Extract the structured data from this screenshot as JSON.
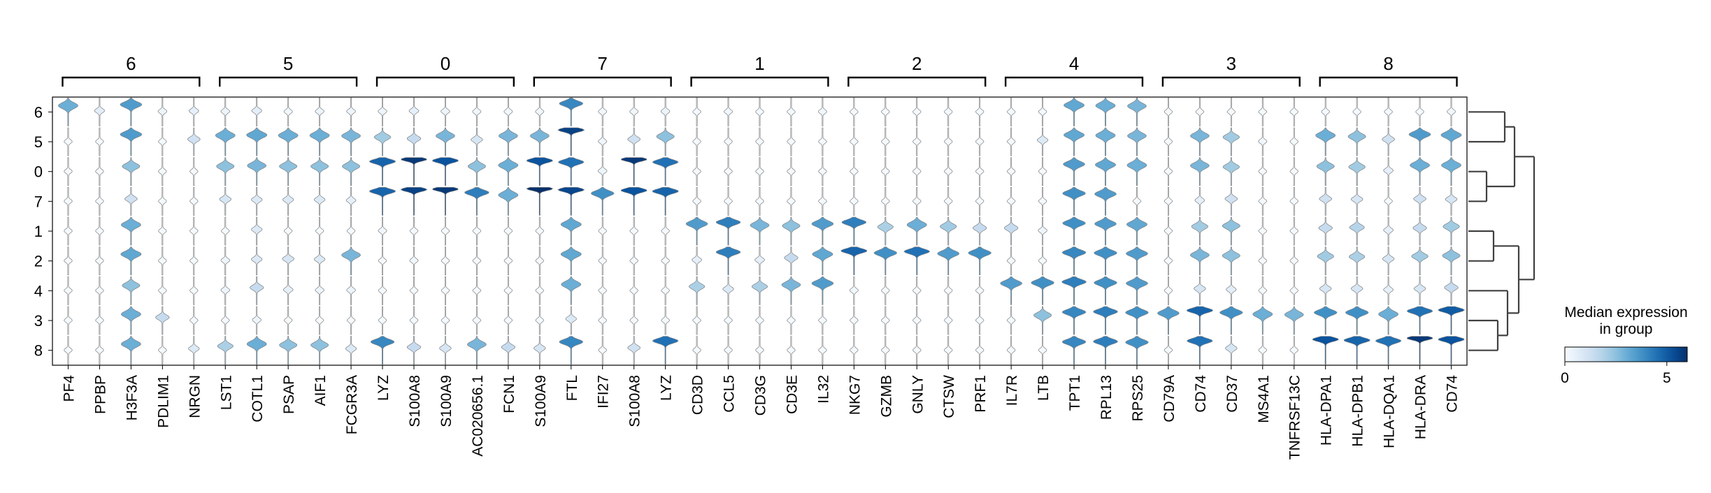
{
  "chart_data": {
    "type": "stacked-violin",
    "rows": [
      "6",
      "5",
      "0",
      "7",
      "1",
      "2",
      "4",
      "3",
      "8"
    ],
    "groups": [
      {
        "label": "6",
        "genes": [
          "PF4",
          "PPBP",
          "H3F3A",
          "PDLIM1",
          "NRGN"
        ]
      },
      {
        "label": "5",
        "genes": [
          "LST1",
          "COTL1",
          "PSAP",
          "AIF1",
          "FCGR3A"
        ]
      },
      {
        "label": "0",
        "genes": [
          "LYZ",
          "S100A8",
          "S100A9",
          "AC020656.1",
          "FCN1"
        ]
      },
      {
        "label": "7",
        "genes": [
          "S100A9",
          "FTL",
          "IFI27",
          "S100A8",
          "LYZ"
        ]
      },
      {
        "label": "1",
        "genes": [
          "CD3D",
          "CCL5",
          "CD3G",
          "CD3E",
          "IL32"
        ]
      },
      {
        "label": "2",
        "genes": [
          "NKG7",
          "GZMB",
          "GNLY",
          "CTSW",
          "PRF1"
        ]
      },
      {
        "label": "4",
        "genes": [
          "IL7R",
          "LTB",
          "TPT1",
          "RPL13",
          "RPS25"
        ]
      },
      {
        "label": "3",
        "genes": [
          "CD79A",
          "CD74",
          "CD37",
          "MS4A1",
          "TNFRSF13C"
        ]
      },
      {
        "label": "8",
        "genes": [
          "HLA-DPA1",
          "HLA-DPB1",
          "HLA-DQA1",
          "HLA-DRA",
          "CD74"
        ]
      }
    ],
    "median_expression": [
      [
        3.0,
        0.6,
        3.5,
        0.3,
        0.5,
        0.3,
        0.6,
        0.2,
        0.3,
        0.3,
        0.3,
        0.5,
        0.3,
        0.2,
        0.2,
        0.2,
        4.0,
        0.2,
        0.2,
        0.3,
        0.1,
        0.2,
        0.1,
        0.1,
        0.2,
        0.1,
        0.1,
        0.1,
        0.1,
        0.1,
        0.1,
        0.1,
        3.2,
        3.0,
        2.8,
        0.1,
        0.1,
        0.1,
        0.1,
        0.1,
        0.1,
        0.1,
        0.1,
        0.1,
        0.2
      ],
      [
        0.1,
        0.1,
        3.5,
        0.1,
        1.2,
        3.0,
        3.2,
        3.0,
        3.0,
        2.8,
        2.2,
        1.5,
        2.8,
        1.0,
        2.8,
        2.8,
        5.6,
        0.2,
        1.2,
        2.5,
        0.1,
        0.1,
        0.1,
        0.1,
        0.1,
        0.1,
        0.1,
        0.1,
        0.1,
        0.1,
        0.1,
        0.8,
        3.2,
        3.0,
        2.8,
        0.1,
        2.8,
        2.2,
        0.2,
        0.1,
        3.0,
        2.5,
        1.2,
        3.5,
        3.2
      ],
      [
        0.1,
        0.1,
        2.5,
        0.1,
        0.1,
        2.5,
        2.8,
        2.5,
        2.5,
        2.5,
        4.8,
        5.8,
        5.2,
        2.5,
        3.0,
        5.2,
        4.5,
        0.3,
        5.8,
        4.5,
        0.1,
        0.1,
        0.1,
        0.1,
        0.1,
        0.1,
        0.1,
        0.1,
        0.1,
        0.1,
        0.1,
        0.1,
        3.5,
        3.2,
        3.0,
        0.1,
        2.8,
        2.2,
        0.1,
        0.1,
        2.5,
        2.2,
        0.5,
        3.0,
        3.0
      ],
      [
        0.1,
        0.1,
        1.2,
        0.1,
        0.1,
        1.0,
        0.8,
        0.8,
        0.8,
        0.5,
        4.8,
        5.6,
        5.8,
        4.2,
        3.0,
        6.0,
        5.5,
        3.8,
        5.2,
        4.8,
        0.1,
        0.1,
        0.1,
        0.1,
        0.1,
        0.1,
        0.1,
        0.1,
        0.1,
        0.1,
        0.1,
        0.1,
        3.8,
        3.5,
        0.1,
        0.1,
        0.5,
        1.2,
        0.1,
        0.1,
        1.2,
        1.0,
        0.1,
        1.2,
        1.0
      ],
      [
        0.1,
        0.1,
        3.0,
        0.1,
        0.1,
        0.1,
        0.8,
        0.1,
        0.1,
        0.1,
        0.2,
        0.1,
        0.1,
        0.1,
        0.1,
        0.1,
        3.2,
        0.1,
        0.1,
        0.1,
        3.5,
        4.2,
        2.8,
        2.5,
        3.5,
        4.2,
        2.0,
        3.0,
        2.2,
        1.5,
        1.5,
        0.3,
        3.8,
        3.5,
        3.2,
        0.1,
        2.2,
        2.5,
        0.1,
        0.1,
        1.5,
        1.8,
        0.5,
        1.5,
        2.2
      ],
      [
        0.1,
        0.1,
        3.2,
        0.1,
        0.1,
        0.3,
        0.8,
        1.0,
        0.8,
        2.8,
        0.1,
        0.2,
        0.1,
        0.1,
        0.1,
        0.1,
        3.2,
        0.1,
        0.1,
        0.1,
        0.5,
        4.2,
        0.5,
        1.5,
        3.2,
        4.8,
        3.8,
        4.5,
        3.5,
        3.8,
        0.1,
        0.1,
        4.0,
        3.8,
        3.5,
        0.1,
        2.8,
        2.5,
        0.1,
        0.1,
        2.2,
        2.0,
        1.0,
        2.2,
        2.5
      ],
      [
        0.1,
        0.1,
        2.5,
        0.1,
        0.1,
        0.3,
        1.5,
        0.5,
        0.3,
        0.3,
        0.1,
        0.1,
        0.1,
        0.1,
        0.1,
        0.1,
        3.0,
        0.1,
        0.1,
        0.1,
        2.0,
        0.8,
        2.0,
        2.8,
        3.5,
        0.2,
        0.1,
        0.1,
        0.1,
        0.1,
        3.5,
        3.8,
        4.2,
        3.8,
        3.5,
        0.1,
        1.0,
        0.6,
        0.1,
        0.1,
        1.0,
        1.0,
        0.5,
        1.0,
        1.5
      ],
      [
        0.1,
        0.1,
        3.0,
        1.5,
        0.1,
        0.1,
        0.3,
        0.1,
        0.1,
        0.1,
        0.1,
        0.1,
        0.1,
        0.1,
        0.1,
        0.1,
        0.8,
        0.1,
        0.1,
        0.1,
        0.1,
        0.1,
        0.1,
        0.1,
        0.1,
        0.1,
        0.1,
        0.1,
        0.1,
        0.1,
        0.1,
        2.5,
        4.0,
        4.2,
        3.8,
        3.5,
        4.8,
        3.8,
        3.0,
        2.8,
        3.8,
        3.8,
        3.0,
        4.5,
        5.0
      ],
      [
        0.1,
        0.1,
        3.0,
        0.1,
        0.8,
        2.0,
        3.0,
        2.5,
        2.5,
        0.8,
        4.0,
        1.5,
        1.0,
        2.8,
        1.5,
        1.0,
        4.0,
        0.1,
        1.2,
        4.5,
        0.1,
        0.1,
        0.1,
        0.1,
        0.1,
        0.1,
        0.1,
        0.1,
        0.1,
        0.1,
        0.1,
        0.1,
        4.0,
        4.2,
        3.8,
        0.1,
        4.5,
        1.0,
        0.1,
        0.1,
        5.2,
        4.8,
        4.5,
        5.8,
        5.2
      ]
    ],
    "colorbar": {
      "title": [
        "Median expression",
        "in group"
      ],
      "colormap": "Blues",
      "range": [
        0,
        6
      ],
      "ticks": [
        "0",
        "5"
      ]
    }
  }
}
